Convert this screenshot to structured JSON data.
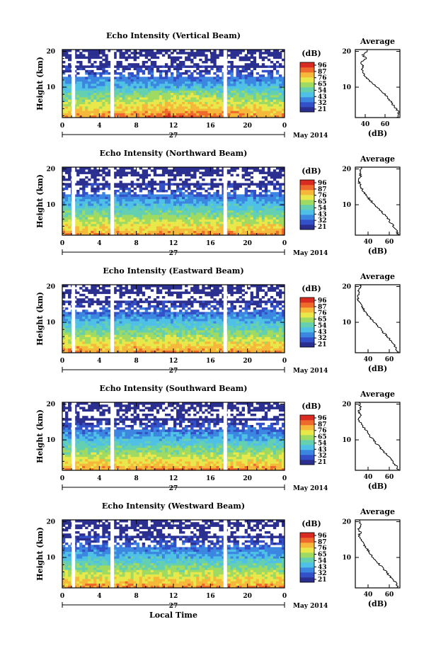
{
  "chart_data": [
    {
      "type": "heatmap",
      "title": "Echo Intensity (Vertical Beam)",
      "ylabel": "Height (km)",
      "x_ticks": [
        "0",
        "4",
        "8",
        "12",
        "16",
        "20",
        "0"
      ],
      "xlim": [
        0,
        24
      ],
      "y_ticks": [
        "20",
        "10"
      ],
      "ylim": [
        1.5,
        20.5
      ],
      "date_label": "27",
      "month_label": "May 2014",
      "colorbar": {
        "unit": "(dB)",
        "ticks": [
          "96",
          "87",
          "76",
          "65",
          "54",
          "43",
          "32",
          "21"
        ]
      },
      "gap_hours": [
        1.2,
        5.4,
        17.6
      ],
      "profile": {
        "title": "Average",
        "xlabel": "(dB)",
        "x_ticks": [
          "40",
          "60"
        ],
        "xlim": [
          30,
          75
        ],
        "y_ticks": [
          "20",
          "10"
        ],
        "ylim": [
          1.5,
          20.5
        ],
        "heights": [
          1.5,
          3,
          4,
          5,
          6,
          7,
          8,
          9,
          10,
          11,
          12,
          13,
          14,
          15,
          16,
          17,
          18,
          19,
          20
        ],
        "values": [
          72,
          74,
          71,
          68,
          66,
          63,
          60,
          56,
          52,
          48,
          43,
          40,
          38,
          36,
          38,
          35,
          41,
          37,
          42
        ]
      }
    },
    {
      "type": "heatmap",
      "title": "Echo Intensity (Northward Beam)",
      "ylabel": "Height (km)",
      "x_ticks": [
        "0",
        "4",
        "8",
        "12",
        "16",
        "20",
        "0"
      ],
      "xlim": [
        0,
        24
      ],
      "y_ticks": [
        "20",
        "10"
      ],
      "ylim": [
        1.5,
        20.5
      ],
      "date_label": "27",
      "month_label": "May 2014",
      "colorbar": {
        "unit": "(dB)",
        "ticks": [
          "96",
          "87",
          "76",
          "65",
          "54",
          "43",
          "32",
          "21"
        ]
      },
      "gap_hours": [
        1.2,
        5.4,
        17.6
      ],
      "profile": {
        "title": "Average",
        "xlabel": "(dB)",
        "x_ticks": [
          "40",
          "60"
        ],
        "xlim": [
          28,
          70
        ],
        "y_ticks": [
          "20",
          "10"
        ],
        "ylim": [
          1.5,
          20.5
        ],
        "heights": [
          1.5,
          3,
          4,
          5,
          6,
          7,
          8,
          9,
          10,
          11,
          12,
          13,
          14,
          15,
          16,
          17,
          18,
          19,
          20
        ],
        "values": [
          68,
          67,
          64,
          61,
          59,
          56,
          53,
          49,
          46,
          43,
          40,
          37,
          35,
          33,
          32,
          31,
          33,
          32,
          34
        ]
      }
    },
    {
      "type": "heatmap",
      "title": "Echo Intensity (Eastward Beam)",
      "ylabel": "Height (km)",
      "x_ticks": [
        "0",
        "4",
        "8",
        "12",
        "16",
        "20",
        "0"
      ],
      "xlim": [
        0,
        24
      ],
      "y_ticks": [
        "20",
        "10"
      ],
      "ylim": [
        1.5,
        20.5
      ],
      "date_label": "27",
      "month_label": "May 2014",
      "colorbar": {
        "unit": "(dB)",
        "ticks": [
          "96",
          "87",
          "76",
          "65",
          "54",
          "43",
          "32",
          "21"
        ]
      },
      "gap_hours": [
        1.2,
        5.4,
        17.6
      ],
      "profile": {
        "title": "Average",
        "xlabel": "(dB)",
        "x_ticks": [
          "40",
          "60"
        ],
        "xlim": [
          28,
          70
        ],
        "y_ticks": [
          "20",
          "10"
        ],
        "ylim": [
          1.5,
          20.5
        ],
        "heights": [
          1.5,
          3,
          4,
          5,
          6,
          7,
          8,
          9,
          10,
          11,
          12,
          13,
          14,
          15,
          16,
          17,
          18,
          19,
          20
        ],
        "values": [
          68,
          66,
          64,
          61,
          58,
          55,
          52,
          49,
          46,
          43,
          40,
          37,
          35,
          33,
          31,
          30,
          32,
          31,
          33
        ]
      }
    },
    {
      "type": "heatmap",
      "title": "Echo Intensity (Southward Beam)",
      "ylabel": "Height (km)",
      "x_ticks": [
        "0",
        "4",
        "8",
        "12",
        "16",
        "20",
        "0"
      ],
      "xlim": [
        0,
        24
      ],
      "y_ticks": [
        "20",
        "10"
      ],
      "ylim": [
        1.5,
        20.5
      ],
      "date_label": "27",
      "month_label": "May 2014",
      "colorbar": {
        "unit": "(dB)",
        "ticks": [
          "96",
          "87",
          "76",
          "65",
          "54",
          "43",
          "32",
          "21"
        ]
      },
      "gap_hours": [
        1.2,
        5.4,
        17.6
      ],
      "profile": {
        "title": "Average",
        "xlabel": "(dB)",
        "x_ticks": [
          "40",
          "60"
        ],
        "xlim": [
          28,
          70
        ],
        "y_ticks": [
          "20",
          "10"
        ],
        "ylim": [
          1.5,
          20.5
        ],
        "heights": [
          1.5,
          3,
          4,
          5,
          6,
          7,
          8,
          9,
          10,
          11,
          12,
          13,
          14,
          15,
          16,
          17,
          18,
          19,
          20
        ],
        "values": [
          68,
          66,
          63,
          60,
          57,
          54,
          51,
          48,
          45,
          42,
          40,
          37,
          35,
          32,
          31,
          33,
          31,
          33,
          32
        ]
      }
    },
    {
      "type": "heatmap",
      "title": "Echo Intensity (Westward Beam)",
      "ylabel": "Height (km)",
      "xlabel": "Local Time",
      "x_ticks": [
        "0",
        "4",
        "8",
        "12",
        "16",
        "20",
        "0"
      ],
      "xlim": [
        0,
        24
      ],
      "y_ticks": [
        "20",
        "10"
      ],
      "ylim": [
        1.5,
        20.5
      ],
      "date_label": "27",
      "month_label": "May 2014",
      "colorbar": {
        "unit": "(dB)",
        "ticks": [
          "96",
          "87",
          "76",
          "65",
          "54",
          "43",
          "32",
          "21"
        ]
      },
      "gap_hours": [
        1.2,
        5.4,
        17.6
      ],
      "profile": {
        "title": "Average",
        "xlabel": "(dB)",
        "x_ticks": [
          "40",
          "60"
        ],
        "xlim": [
          28,
          70
        ],
        "y_ticks": [
          "20",
          "10"
        ],
        "ylim": [
          1.5,
          20.5
        ],
        "heights": [
          1.5,
          3,
          4,
          5,
          6,
          7,
          8,
          9,
          10,
          11,
          12,
          13,
          14,
          15,
          16,
          17,
          18,
          19,
          20
        ],
        "values": [
          68,
          66,
          63,
          60,
          57,
          54,
          51,
          48,
          45,
          42,
          40,
          37,
          35,
          33,
          31,
          33,
          31,
          33,
          32
        ]
      }
    }
  ],
  "colors": {
    "colormap": [
      "#2b2f8f",
      "#3350c8",
      "#3b86e0",
      "#4fc0e6",
      "#64d0b0",
      "#9fda62",
      "#e8e84a",
      "#f6b83a",
      "#ee6a2c",
      "#d92b22"
    ],
    "gap": "#ffffff",
    "axis": "#000000"
  }
}
